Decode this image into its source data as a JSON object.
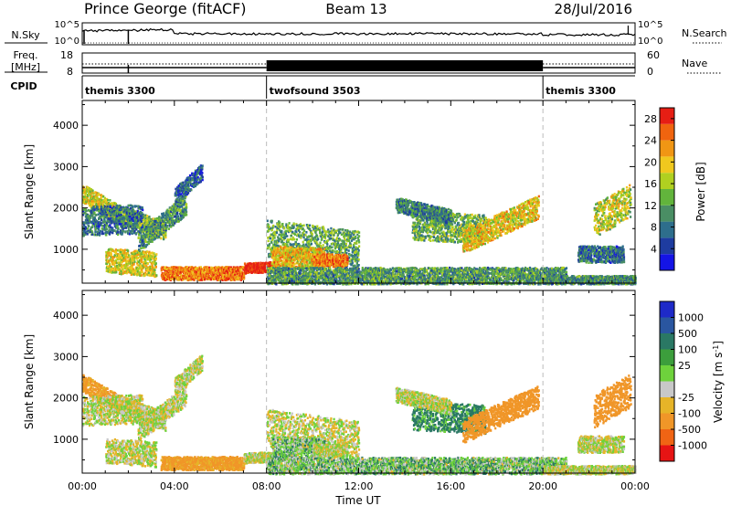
{
  "header": {
    "station": "Prince George (fitACF)",
    "beam": "Beam 13",
    "date": "28/Jul/2016"
  },
  "noise_panel": {
    "left_label": "N.Sky",
    "right_label": "N.Search",
    "left_ticks": [
      "10^5",
      "10^0"
    ],
    "right_ticks": [
      "10^5",
      "10^0"
    ]
  },
  "freq_panel": {
    "left_label_line1": "Freq.",
    "left_label_line2": "[MHz]",
    "right_label": "Nave",
    "left_ticks": [
      "18",
      "8"
    ],
    "right_ticks": [
      "60",
      "0"
    ]
  },
  "cpid_panel": {
    "label": "CPID",
    "segments": [
      {
        "name": "themis 3300",
        "start_hour": 0,
        "end_hour": 8
      },
      {
        "name": "twofsound 3503",
        "start_hour": 8,
        "end_hour": 20
      },
      {
        "name": "themis 3300",
        "start_hour": 20,
        "end_hour": 24
      }
    ]
  },
  "colors": {
    "power_scale": [
      "#1414e6",
      "#1e3ca0",
      "#2e6e8c",
      "#4a8e64",
      "#62b43c",
      "#b0d020",
      "#f0c81e",
      "#f09614",
      "#f0640f",
      "#e61e14"
    ],
    "velocity_scale": [
      "#1e2ac8",
      "#2a56a0",
      "#2a7864",
      "#3c9e3c",
      "#6ed23c",
      "#c8c8c8",
      "#e6b428",
      "#f09628",
      "#f06414",
      "#e61414"
    ]
  },
  "chart_data": [
    {
      "type": "heatmap",
      "title": "",
      "xlabel": "Time UT",
      "ylabel": "Slant Range [km]",
      "x_range_hours": [
        0,
        24
      ],
      "y_range_km": [
        180,
        4600
      ],
      "x_ticks": [
        "00:00",
        "04:00",
        "08:00",
        "12:00",
        "16:00",
        "20:00",
        "00:00"
      ],
      "x_tick_hours": [
        0,
        4,
        8,
        12,
        16,
        20,
        24
      ],
      "y_ticks": [
        "1000",
        "2000",
        "3000",
        "4000"
      ],
      "y_tick_values": [
        1000,
        2000,
        3000,
        4000
      ],
      "colorbar": {
        "label": "Power [dB]",
        "range": [
          0,
          30
        ],
        "ticks": [
          "4",
          "8",
          "12",
          "16",
          "20",
          "24",
          "28"
        ],
        "tick_values": [
          4,
          8,
          12,
          16,
          20,
          24,
          28
        ]
      },
      "scatter_bands": [
        {
          "t0": 0.0,
          "t1": 1.6,
          "r0": 2380,
          "r1": 1850,
          "w": 220,
          "v": 18
        },
        {
          "t0": 1.4,
          "t1": 3.6,
          "r0": 1900,
          "r1": 1450,
          "w": 220,
          "v": 14
        },
        {
          "t0": 0.0,
          "t1": 2.6,
          "r0": 1700,
          "r1": 1750,
          "w": 350,
          "v": 8
        },
        {
          "t0": 1.0,
          "t1": 3.2,
          "r0": 750,
          "r1": 650,
          "w": 300,
          "v": 18
        },
        {
          "t0": 2.4,
          "t1": 4.5,
          "r0": 1200,
          "r1": 2100,
          "w": 250,
          "v": 11
        },
        {
          "t0": 4.0,
          "t1": 5.2,
          "r0": 2300,
          "r1": 2900,
          "w": 200,
          "v": 7
        },
        {
          "t0": 3.4,
          "t1": 7.0,
          "r0": 440,
          "r1": 440,
          "w": 160,
          "v": 24
        },
        {
          "t0": 7.0,
          "t1": 8.4,
          "r0": 560,
          "r1": 600,
          "w": 120,
          "v": 30
        },
        {
          "t0": 8.0,
          "t1": 12.0,
          "r0": 1300,
          "r1": 1000,
          "w": 450,
          "v": 12
        },
        {
          "t0": 8.2,
          "t1": 10.5,
          "r0": 850,
          "r1": 800,
          "w": 250,
          "v": 20
        },
        {
          "t0": 10.0,
          "t1": 11.5,
          "r0": 750,
          "r1": 750,
          "w": 150,
          "v": 24
        },
        {
          "t0": 8.0,
          "t1": 21.0,
          "r0": 380,
          "r1": 380,
          "w": 200,
          "v": 11
        },
        {
          "t0": 14.3,
          "t1": 17.5,
          "r0": 1600,
          "r1": 1500,
          "w": 350,
          "v": 13
        },
        {
          "t0": 16.5,
          "t1": 19.8,
          "r0": 1200,
          "r1": 2050,
          "w": 280,
          "v": 19
        },
        {
          "t0": 13.6,
          "t1": 16.0,
          "r0": 2100,
          "r1": 1800,
          "w": 180,
          "v": 9
        },
        {
          "t0": 22.2,
          "t1": 23.8,
          "r0": 1700,
          "r1": 2200,
          "w": 400,
          "v": 17
        },
        {
          "t0": 21.5,
          "t1": 23.5,
          "r0": 900,
          "r1": 900,
          "w": 200,
          "v": 8
        },
        {
          "t0": 20.0,
          "t1": 24.0,
          "r0": 260,
          "r1": 260,
          "w": 120,
          "v": 10
        }
      ]
    },
    {
      "type": "heatmap",
      "title": "",
      "xlabel": "Time UT",
      "ylabel": "Slant Range [km]",
      "x_range_hours": [
        0,
        24
      ],
      "y_range_km": [
        180,
        4600
      ],
      "x_ticks": [
        "00:00",
        "04:00",
        "08:00",
        "12:00",
        "16:00",
        "20:00",
        "00:00"
      ],
      "x_tick_hours": [
        0,
        4,
        8,
        12,
        16,
        20,
        24
      ],
      "y_ticks": [
        "1000",
        "2000",
        "3000",
        "4000"
      ],
      "y_tick_values": [
        1000,
        2000,
        3000,
        4000
      ],
      "colorbar": {
        "label": "Velocity [m s^-1]",
        "ticks": [
          "1000",
          "500",
          "100",
          "25",
          "-25",
          "-100",
          "-500",
          "-1000"
        ],
        "tick_values": [
          1000,
          500,
          100,
          25,
          -25,
          -100,
          -500,
          -1000
        ]
      },
      "scatter_bands": [
        {
          "t0": 0.0,
          "t1": 1.6,
          "r0": 2380,
          "r1": 1850,
          "w": 220,
          "v": -150
        },
        {
          "t0": 1.4,
          "t1": 3.6,
          "r0": 1900,
          "r1": 1450,
          "w": 220,
          "v": 0
        },
        {
          "t0": 0.0,
          "t1": 2.6,
          "r0": 1700,
          "r1": 1750,
          "w": 350,
          "v": 0
        },
        {
          "t0": 1.0,
          "t1": 3.2,
          "r0": 750,
          "r1": 650,
          "w": 300,
          "v": 0
        },
        {
          "t0": 2.4,
          "t1": 4.5,
          "r0": 1200,
          "r1": 2100,
          "w": 250,
          "v": 0
        },
        {
          "t0": 4.0,
          "t1": 5.2,
          "r0": 2300,
          "r1": 2900,
          "w": 200,
          "v": 0
        },
        {
          "t0": 3.4,
          "t1": 7.0,
          "r0": 440,
          "r1": 440,
          "w": 160,
          "v": -150
        },
        {
          "t0": 7.0,
          "t1": 8.4,
          "r0": 560,
          "r1": 600,
          "w": 120,
          "v": 0
        },
        {
          "t0": 8.0,
          "t1": 12.0,
          "r0": 1300,
          "r1": 1000,
          "w": 450,
          "v": 0
        },
        {
          "t0": 8.2,
          "t1": 10.5,
          "r0": 850,
          "r1": 800,
          "w": 250,
          "v": 60
        },
        {
          "t0": 10.0,
          "t1": 11.5,
          "r0": 750,
          "r1": 750,
          "w": 150,
          "v": 0
        },
        {
          "t0": 8.0,
          "t1": 21.0,
          "r0": 380,
          "r1": 380,
          "w": 200,
          "v": 60
        },
        {
          "t0": 14.3,
          "t1": 17.5,
          "r0": 1600,
          "r1": 1500,
          "w": 350,
          "v": 150
        },
        {
          "t0": 16.5,
          "t1": 19.8,
          "r0": 1200,
          "r1": 2050,
          "w": 280,
          "v": -350
        },
        {
          "t0": 13.6,
          "t1": 16.0,
          "r0": 2100,
          "r1": 1800,
          "w": 180,
          "v": 0
        },
        {
          "t0": 22.2,
          "t1": 23.8,
          "r0": 1700,
          "r1": 2200,
          "w": 400,
          "v": -200
        },
        {
          "t0": 21.5,
          "t1": 23.5,
          "r0": 900,
          "r1": 900,
          "w": 200,
          "v": 0
        },
        {
          "t0": 20.0,
          "t1": 24.0,
          "r0": 260,
          "r1": 260,
          "w": 120,
          "v": 0
        }
      ]
    }
  ]
}
